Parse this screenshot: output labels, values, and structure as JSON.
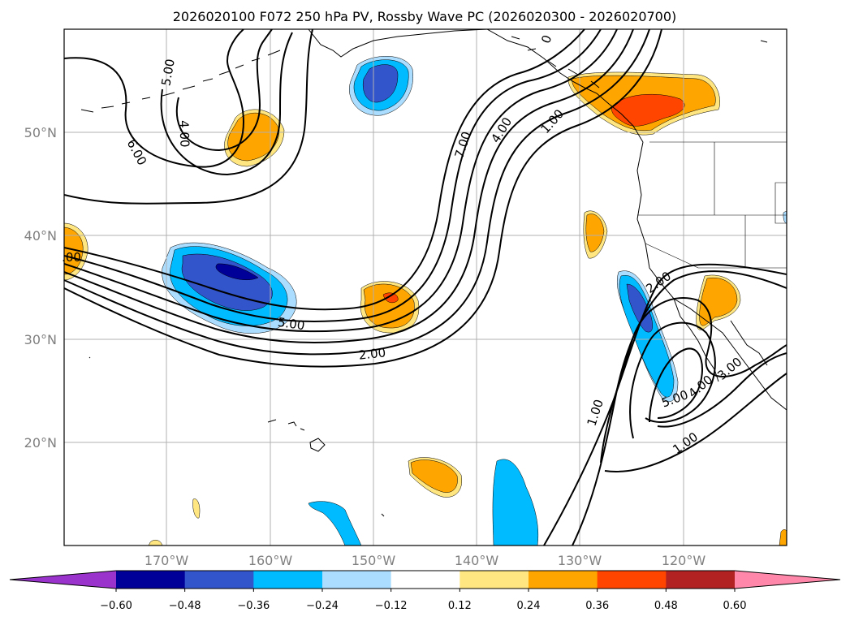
{
  "title": "2026020100 F072 250 hPa PV, Rossby Wave PC (2026020300 - 2026020700)",
  "latitude_labels": [
    "50°N",
    "40°N",
    "30°N",
    "20°N"
  ],
  "longitude_labels": [
    "170°W",
    "160°W",
    "150°W",
    "140°W",
    "130°W",
    "120°W"
  ],
  "contour_labels": [
    "5.00",
    "4.00",
    "6.00",
    "7.00",
    "4.00",
    "1.00",
    "5.00",
    "2.00",
    "2.00",
    "1.00",
    "5.00",
    "4.00",
    "3.00",
    "1.00",
    ".00",
    "0"
  ],
  "colorbar": {
    "ticks": [
      "−0.60",
      "−0.48",
      "−0.36",
      "−0.24",
      "−0.12",
      "0.12",
      "0.24",
      "0.36",
      "0.48",
      "0.60"
    ],
    "colors": [
      "#9933cc",
      "#000099",
      "#3355cc",
      "#00bbff",
      "#aaddff",
      "#ffffff",
      "#ffe680",
      "#ffa500",
      "#ff4500",
      "#b22222",
      "#ff88aa"
    ]
  },
  "fill_colors": {
    "neg_light": "#aaddff",
    "neg_mid": "#00bbff",
    "neg_strong": "#3355cc",
    "neg_max": "#000099",
    "pos_light": "#ffe680",
    "pos_mid": "#ffa500",
    "pos_strong": "#ff4500"
  }
}
